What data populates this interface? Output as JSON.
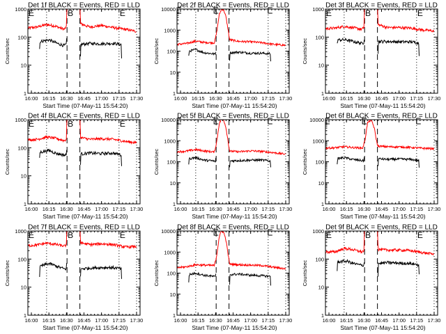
{
  "chart_data": {
    "type": "line",
    "layout": "3x3 grid",
    "common": {
      "xlabel": "Start Time (07-May-11 15:54:20)",
      "ylabel": "Counts/sec",
      "yscale": "log",
      "ylim": [
        1,
        10000
      ],
      "xlim_minutes_of_day": [
        957,
        1053
      ],
      "xticks": [
        {
          "label": "16:00",
          "min": 960
        },
        {
          "label": "16:15",
          "min": 975
        },
        {
          "label": "16:30",
          "min": 990
        },
        {
          "label": "16:45",
          "min": 1005
        },
        {
          "label": "17:00",
          "min": 1020
        },
        {
          "label": "17:15",
          "min": 1035
        },
        {
          "label": "17:30",
          "min": 1050
        }
      ],
      "dotted_lines_min": [
        973,
        1035,
        1050
      ],
      "dashed_lines_min": [
        990.5,
        1001.5
      ],
      "markers": [
        {
          "label": "E",
          "min": 957
        },
        {
          "label": "B",
          "min": 990.5
        },
        {
          "label": "E",
          "min": 1035
        }
      ],
      "series_colors": {
        "events": "#000000",
        "lld": "#ff0000"
      },
      "legend": "BLACK = Events, RED = LLD"
    },
    "panels": [
      {
        "title": "Det 1f BLACK = Events, RED = LLD",
        "yticks": [
          "1",
          "10",
          "100",
          "1000"
        ],
        "ymax": 1000,
        "lld": {
          "min": [
            957,
            965,
            973,
            980,
            988,
            990,
            990.5,
            1001.5,
            1002,
            1010,
            1020,
            1030,
            1040,
            1050
          ],
          "val": [
            210,
            230,
            280,
            250,
            190,
            230,
            2000,
            2000,
            300,
            230,
            260,
            220,
            190,
            160
          ]
        },
        "events": {
          "min": [
            967,
            967.5,
            975,
            982,
            988,
            990,
            990.5,
            1002,
            1002.3,
            1010,
            1020,
            1030,
            1037,
            1037.3
          ],
          "val": [
            38,
            70,
            80,
            60,
            50,
            55,
            150,
            20,
            55,
            60,
            58,
            60,
            55,
            10
          ]
        }
      },
      {
        "title": "Det 2f BLACK = Events, RED = LLD",
        "yticks": [
          "1",
          "10",
          "100",
          "1000",
          "10000"
        ],
        "ymax": 10000,
        "lld": {
          "min": [
            957,
            965,
            973,
            980,
            989,
            991,
            993,
            995,
            997,
            999,
            1001,
            1002,
            1010,
            1020,
            1030,
            1040,
            1050
          ],
          "val": [
            210,
            230,
            300,
            260,
            250,
            800,
            5000,
            10000,
            9000,
            4000,
            800,
            350,
            290,
            280,
            250,
            210,
            190
          ]
        },
        "events": {
          "min": [
            967,
            967.5,
            973,
            980,
            988,
            990,
            990.5,
            1002,
            1002.3,
            1010,
            1020,
            1030,
            1037,
            1037.3
          ],
          "val": [
            55,
            100,
            120,
            85,
            75,
            70,
            180,
            35,
            85,
            90,
            80,
            80,
            75,
            20
          ]
        }
      },
      {
        "title": "Det 3f BLACK = Events, RED = LLD",
        "yticks": [
          "1",
          "10",
          "100",
          "1000"
        ],
        "ymax": 1000,
        "lld": {
          "min": [
            957,
            965,
            973,
            980,
            988,
            990,
            990.5,
            1001.5,
            1002,
            1010,
            1020,
            1030,
            1040,
            1050
          ],
          "val": [
            200,
            210,
            240,
            220,
            190,
            220,
            2000,
            2000,
            280,
            220,
            220,
            210,
            180,
            165
          ]
        },
        "events": {
          "min": [
            967,
            967.5,
            975,
            982,
            988,
            990,
            990.5,
            1002,
            1002.3,
            1010,
            1020,
            1030,
            1037,
            1037.3
          ],
          "val": [
            55,
            80,
            80,
            68,
            60,
            65,
            150,
            28,
            70,
            70,
            68,
            68,
            62,
            15
          ]
        }
      },
      {
        "title": "Det 4f BLACK = Events, RED = LLD",
        "yticks": [
          "1",
          "10",
          "100",
          "1000"
        ],
        "ymax": 1000,
        "lld": {
          "min": [
            957,
            965,
            973,
            980,
            988,
            990,
            990.5,
            1001.5,
            1002,
            1010,
            1020,
            1030,
            1040,
            1050
          ],
          "val": [
            190,
            200,
            240,
            220,
            180,
            200,
            2000,
            2000,
            230,
            200,
            210,
            200,
            170,
            150
          ]
        },
        "events": {
          "min": [
            967,
            967.5,
            975,
            982,
            988,
            990,
            990.5,
            1002,
            1002.3,
            1010,
            1020,
            1030,
            1037,
            1037.3
          ],
          "val": [
            45,
            70,
            80,
            62,
            55,
            55,
            150,
            28,
            60,
            65,
            62,
            65,
            55,
            12
          ]
        }
      },
      {
        "title": "Det 5f BLACK = Events, RED = LLD",
        "yticks": [
          "1",
          "10",
          "100",
          "1000",
          "10000"
        ],
        "ymax": 10000,
        "lld": {
          "min": [
            957,
            965,
            973,
            980,
            989,
            991,
            993,
            995,
            997,
            999,
            1001,
            1002,
            1010,
            1020,
            1030,
            1040,
            1050
          ],
          "val": [
            300,
            320,
            380,
            330,
            290,
            900,
            6000,
            11000,
            9500,
            4000,
            700,
            320,
            300,
            330,
            310,
            270,
            230
          ]
        },
        "events": {
          "min": [
            967,
            967.5,
            973,
            980,
            988,
            990,
            990.5,
            1002,
            1002.3,
            1010,
            1020,
            1030,
            1037,
            1037.3
          ],
          "val": [
            85,
            140,
            160,
            120,
            110,
            100,
            250,
            50,
            110,
            115,
            120,
            120,
            110,
            35
          ]
        }
      },
      {
        "title": "Det 6f BLACK = Events, RED = LLD",
        "yticks": [
          "1",
          "10",
          "100",
          "1000",
          "10000"
        ],
        "ymax": 10000,
        "lld": {
          "min": [
            957,
            965,
            973,
            980,
            989,
            991,
            993,
            995,
            997,
            999,
            1001,
            1002,
            1010,
            1020,
            1030,
            1040,
            1050
          ],
          "val": [
            450,
            460,
            520,
            480,
            450,
            1200,
            7000,
            9000,
            8000,
            3500,
            800,
            550,
            520,
            510,
            480,
            440,
            420
          ]
        },
        "events": {
          "min": [
            967,
            967.5,
            973,
            980,
            988,
            990,
            990.5,
            1002,
            1002.3,
            1010,
            1020,
            1030,
            1037,
            1037.3
          ],
          "val": [
            85,
            140,
            160,
            130,
            115,
            110,
            300,
            60,
            140,
            130,
            135,
            130,
            115,
            35
          ]
        }
      },
      {
        "title": "Det 7f BLACK = Events, RED = LLD",
        "yticks": [
          "1",
          "10",
          "100",
          "1000"
        ],
        "ymax": 1000,
        "lld": {
          "min": [
            957,
            965,
            973,
            980,
            988,
            990,
            990.5,
            1001.5,
            1002,
            1010,
            1020,
            1030,
            1040,
            1050
          ],
          "val": [
            300,
            320,
            370,
            340,
            290,
            320,
            2000,
            2000,
            380,
            330,
            350,
            330,
            270,
            280
          ]
        },
        "events": {
          "min": [
            967,
            967.5,
            975,
            982,
            988,
            990,
            990.5,
            1002,
            1002.3,
            1010,
            1020,
            1030,
            1037,
            1037.3
          ],
          "val": [
            25,
            55,
            70,
            55,
            45,
            45,
            160,
            22,
            45,
            48,
            50,
            50,
            45,
            12
          ]
        }
      },
      {
        "title": "Det 8f BLACK = Events, RED = LLD",
        "yticks": [
          "1",
          "10",
          "100",
          "1000",
          "10000"
        ],
        "ymax": 10000,
        "lld": {
          "min": [
            957,
            965,
            973,
            980,
            989,
            991,
            993,
            995,
            997,
            999,
            1001,
            1002,
            1010,
            1020,
            1030,
            1040,
            1050
          ],
          "val": [
            180,
            200,
            250,
            240,
            230,
            700,
            5000,
            10000,
            8500,
            3500,
            600,
            270,
            250,
            240,
            230,
            190,
            160
          ]
        },
        "events": {
          "min": [
            967,
            967.5,
            973,
            980,
            988,
            990,
            990.5,
            1002,
            1002.3,
            1010,
            1020,
            1030,
            1037,
            1037.3
          ],
          "val": [
            40,
            85,
            100,
            80,
            70,
            65,
            150,
            30,
            85,
            90,
            80,
            75,
            70,
            15
          ]
        }
      },
      {
        "title": "Det 9f BLACK = Events, RED = LLD",
        "yticks": [
          "1",
          "10",
          "100",
          "1000"
        ],
        "ymax": 1000,
        "lld": {
          "min": [
            957,
            965,
            973,
            980,
            988,
            990,
            990.5,
            1001.5,
            1002,
            1010,
            1020,
            1030,
            1040,
            1050
          ],
          "val": [
            180,
            180,
            240,
            220,
            180,
            200,
            2000,
            2000,
            220,
            210,
            210,
            200,
            170,
            150
          ]
        },
        "events": {
          "min": [
            967,
            967.5,
            975,
            982,
            988,
            990,
            990.5,
            1002,
            1002.3,
            1010,
            1020,
            1030,
            1037,
            1037.3
          ],
          "val": [
            40,
            80,
            85,
            68,
            60,
            60,
            150,
            25,
            70,
            75,
            72,
            70,
            62,
            20
          ]
        }
      }
    ]
  }
}
